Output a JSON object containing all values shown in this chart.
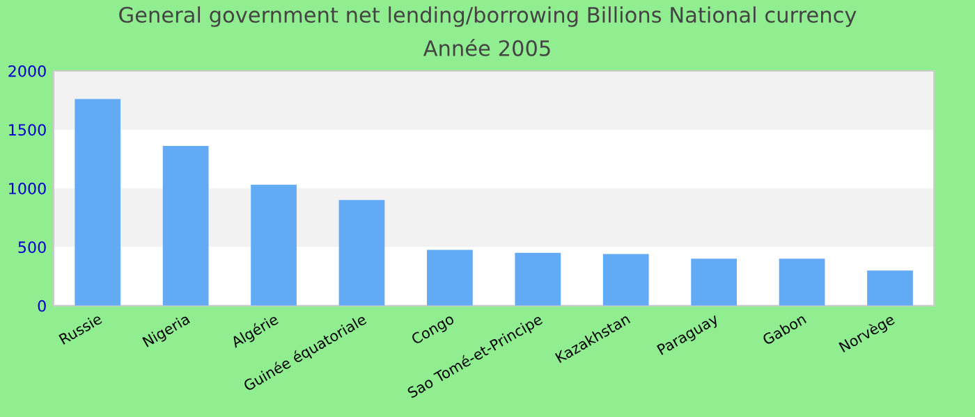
{
  "chart_data": {
    "type": "bar",
    "title": "General government net lending/borrowing Billions National currency",
    "subtitle": "Année 2005",
    "categories": [
      "Russie",
      "Nigeria",
      "Algérie",
      "Guinée équatoriale",
      "Congo",
      "Sao Tomé-et-Principe",
      "Kazakhstan",
      "Paraguay",
      "Gabon",
      "Norvège"
    ],
    "values": [
      1760,
      1360,
      1030,
      900,
      475,
      450,
      440,
      400,
      400,
      300
    ],
    "color": "#63aaf5",
    "ylim": [
      0,
      2000
    ],
    "yticks": [
      0,
      500,
      1000,
      1500,
      2000
    ],
    "bands": [
      {
        "axis": "y",
        "from": 500,
        "to": 1000,
        "color": "#f2f2f2"
      },
      {
        "axis": "y",
        "from": 1500,
        "to": 2000,
        "color": "#f2f2f2"
      }
    ],
    "grid": false,
    "legend": false
  }
}
